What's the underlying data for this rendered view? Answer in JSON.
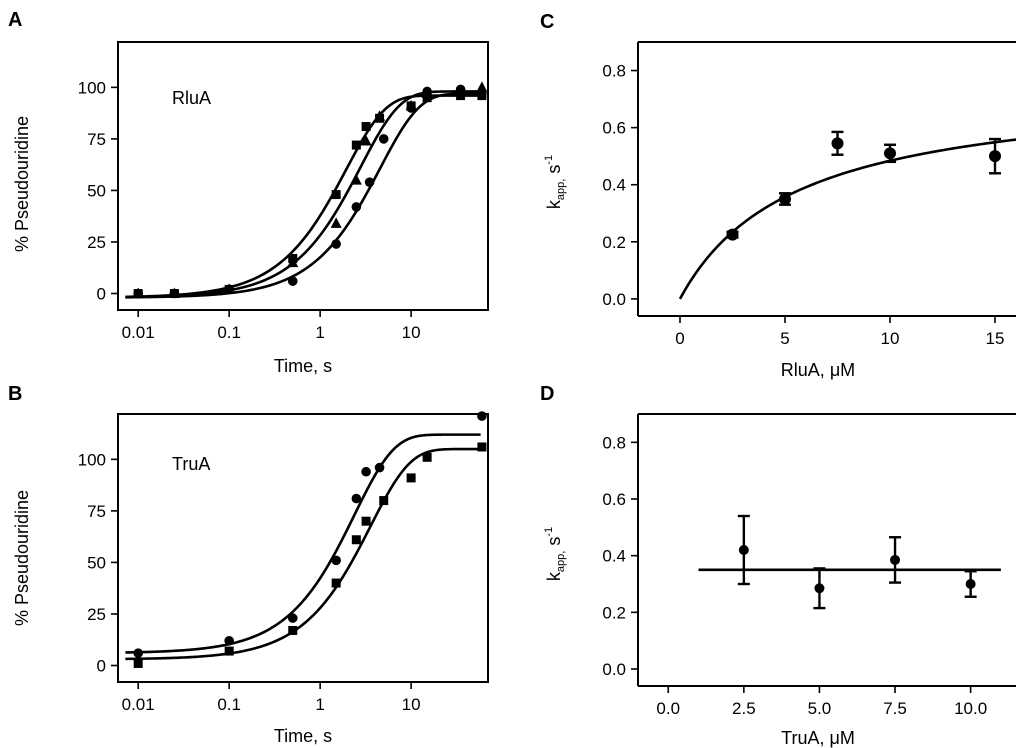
{
  "chart_data": [
    {
      "panel": "A",
      "type": "scatter",
      "inset_label": "RluA",
      "xlabel": "Time, s",
      "ylabel": "% Pseudouridine",
      "xscale": "log",
      "xlim": [
        0.006,
        70
      ],
      "ylim": [
        -8,
        122
      ],
      "xticks": [
        0.01,
        0.1,
        1,
        10
      ],
      "xtick_labels": [
        "0.01",
        "0.1",
        "1",
        "10"
      ],
      "yticks": [
        0,
        25,
        50,
        75,
        100
      ],
      "ytick_labels": [
        "0",
        "25",
        "50",
        "75",
        "100"
      ],
      "grid": false,
      "series": [
        {
          "marker": "square",
          "x": [
            0.01,
            0.025,
            0.1,
            0.5,
            1.5,
            2.5,
            3.2,
            4.5,
            10,
            15,
            35,
            60
          ],
          "y": [
            0,
            0,
            2,
            17,
            48,
            72,
            81,
            85,
            91,
            95,
            96,
            96
          ],
          "fit": {
            "amplitude": 98,
            "offset": -2,
            "k": 0.52
          }
        },
        {
          "marker": "triangle",
          "x": [
            0.01,
            0.025,
            0.1,
            0.5,
            1.5,
            2.5,
            3.2,
            4.5,
            10,
            15,
            35,
            60
          ],
          "y": [
            0,
            0,
            2,
            15,
            34,
            55,
            74,
            86,
            91,
            97,
            98,
            100
          ],
          "fit": {
            "amplitude": 100,
            "offset": -2,
            "k": 0.36
          }
        },
        {
          "marker": "circle",
          "x": [
            0.01,
            0.025,
            0.1,
            0.5,
            1.5,
            2.5,
            3.5,
            5,
            10,
            15,
            35,
            60
          ],
          "y": [
            0,
            0,
            2,
            6,
            24,
            42,
            54,
            75,
            90,
            98,
            99,
            97
          ],
          "fit": {
            "amplitude": 99,
            "offset": -2,
            "k": 0.22
          }
        }
      ]
    },
    {
      "panel": "B",
      "type": "scatter",
      "inset_label": "TruA",
      "xlabel": "Time, s",
      "ylabel": "% Pseudouridine",
      "xscale": "log",
      "xlim": [
        0.006,
        70
      ],
      "ylim": [
        -8,
        122
      ],
      "xticks": [
        0.01,
        0.1,
        1,
        10
      ],
      "xtick_labels": [
        "0.01",
        "0.1",
        "1",
        "10"
      ],
      "yticks": [
        0,
        25,
        50,
        75,
        100
      ],
      "ytick_labels": [
        "0",
        "25",
        "50",
        "75",
        "100"
      ],
      "grid": false,
      "series": [
        {
          "marker": "circle",
          "x": [
            0.01,
            0.1,
            0.5,
            1.5,
            2.5,
            3.2,
            4.5,
            60
          ],
          "y": [
            6,
            12,
            23,
            51,
            81,
            94,
            96,
            121
          ],
          "fit": {
            "amplitude": 106,
            "offset": 6,
            "k": 0.42
          }
        },
        {
          "marker": "square",
          "x": [
            0.01,
            0.1,
            0.5,
            1.5,
            2.5,
            3.2,
            5,
            10,
            15,
            60
          ],
          "y": [
            1,
            7,
            17,
            40,
            61,
            70,
            80,
            91,
            101,
            106
          ],
          "fit": {
            "amplitude": 102,
            "offset": 3,
            "k": 0.28
          }
        }
      ]
    },
    {
      "panel": "C",
      "type": "scatter",
      "xlabel": "RluA, μM",
      "ylabel_main": "k",
      "ylabel_sub": "app,",
      "ylabel_unit": " s",
      "ylabel_sup": "-1",
      "xlim": [
        -2,
        16
      ],
      "ylim": [
        -0.06,
        0.9
      ],
      "xticks": [
        0,
        5,
        10,
        15
      ],
      "xtick_labels": [
        "0",
        "5",
        "10",
        "15"
      ],
      "yticks": [
        0.0,
        0.2,
        0.4,
        0.6,
        0.8
      ],
      "ytick_labels": [
        "0.0",
        "0.2",
        "0.4",
        "0.6",
        "0.8"
      ],
      "grid": false,
      "points": [
        {
          "x": 2.5,
          "y": 0.225,
          "err": 0.01
        },
        {
          "x": 5,
          "y": 0.35,
          "err": 0.02
        },
        {
          "x": 7.5,
          "y": 0.545,
          "err": 0.04
        },
        {
          "x": 10,
          "y": 0.51,
          "err": 0.03
        },
        {
          "x": 15,
          "y": 0.5,
          "err": 0.06
        }
      ],
      "fit": {
        "model": "hyperbolic",
        "kmax": 0.75,
        "kd": 5.5,
        "x_range": [
          0,
          16
        ]
      }
    },
    {
      "panel": "D",
      "type": "scatter",
      "xlabel": "TruA, μM",
      "ylabel_main": "k",
      "ylabel_sub": "app,",
      "ylabel_unit": " s",
      "ylabel_sup": "-1",
      "xlim": [
        -1,
        11.5
      ],
      "ylim": [
        -0.06,
        0.9
      ],
      "xticks": [
        0,
        2.5,
        5,
        7.5,
        10
      ],
      "xtick_labels": [
        "0.0",
        "2.5",
        "5.0",
        "7.5",
        "10.0"
      ],
      "yticks": [
        0.0,
        0.2,
        0.4,
        0.6,
        0.8
      ],
      "ytick_labels": [
        "0.0",
        "0.2",
        "0.4",
        "0.6",
        "0.8"
      ],
      "grid": false,
      "points": [
        {
          "x": 2.5,
          "y": 0.42,
          "err": 0.12
        },
        {
          "x": 5,
          "y": 0.285,
          "err": 0.07
        },
        {
          "x": 7.5,
          "y": 0.385,
          "err": 0.08
        },
        {
          "x": 10,
          "y": 0.3,
          "err": 0.045
        }
      ],
      "fit": {
        "model": "constant",
        "value": 0.35,
        "x_range": [
          1,
          11
        ]
      }
    }
  ]
}
